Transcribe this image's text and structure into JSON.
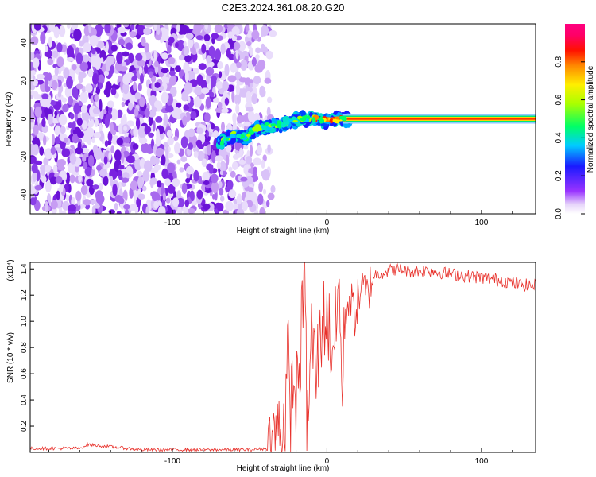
{
  "figure": {
    "title": "C2E3.2024.361.08.20.G20"
  },
  "chart_data": [
    {
      "type": "heatmap",
      "title": "C2E3.2024.361.08.20.G20",
      "xlabel": "Height of straight line (km)",
      "ylabel": "Frequency (Hz)",
      "xlim": [
        -192,
        135
      ],
      "ylim": [
        -50,
        50
      ],
      "xticks": [
        -100,
        0,
        100
      ],
      "yticks": [
        -40,
        -20,
        0,
        20,
        40
      ],
      "colorbar": {
        "label": "Normalized spectral amplitude",
        "range": [
          0,
          1
        ],
        "ticks": [
          "0.0",
          "0.2",
          "0.4",
          "0.6",
          "0.8"
        ],
        "tick_values": [
          0.0,
          0.2,
          0.4,
          0.6,
          0.8
        ]
      },
      "noise_region_x": [
        -192,
        -46
      ],
      "ridge": {
        "x": [
          -68,
          -60,
          -52,
          -45,
          -38,
          -30,
          -22,
          -15,
          -8,
          0,
          8,
          15,
          30,
          60,
          90,
          120,
          135
        ],
        "freq": [
          -12,
          -8,
          -10,
          -5,
          -4,
          -3,
          -1,
          0,
          0,
          -1,
          0,
          0,
          0,
          0,
          0,
          0,
          0
        ],
        "amplitude": [
          0.45,
          0.5,
          0.55,
          0.6,
          0.65,
          0.7,
          0.75,
          0.8,
          0.85,
          0.9,
          0.92,
          0.95,
          0.97,
          0.98,
          0.98,
          0.97,
          0.97
        ]
      }
    },
    {
      "type": "line",
      "xlabel": "Height of straight line (km)",
      "ylabel": "SNR (10 * v/v)",
      "y_multiplier": "(x10⁴)",
      "xlim": [
        -192,
        135
      ],
      "ylim": [
        0,
        1.45
      ],
      "xticks": [
        -100,
        0,
        100
      ],
      "yticks": [
        0.2,
        0.4,
        0.6,
        0.8,
        1.0,
        1.2,
        1.4
      ],
      "series": [
        {
          "color": "#e8312b",
          "x": [
            -192,
            -160,
            -155,
            -120,
            -80,
            -50,
            -35,
            -33,
            -30,
            -27,
            -25,
            -24,
            -22,
            -20,
            -18,
            -14,
            -13,
            -10,
            -7,
            -3,
            0,
            3,
            6,
            8,
            10,
            11,
            14,
            18,
            22,
            26,
            30,
            38,
            45,
            55,
            65,
            80,
            95,
            110,
            125,
            135
          ],
          "y": [
            0.03,
            0.03,
            0.06,
            0.02,
            0.02,
            0.02,
            0.03,
            0.25,
            0.1,
            0.3,
            0.75,
            0.2,
            0.55,
            0.4,
            0.6,
            1.42,
            0.1,
            0.9,
            0.6,
            1.0,
            1.05,
            0.8,
            0.95,
            1.3,
            0.32,
            0.95,
            1.2,
            1.05,
            1.25,
            1.2,
            1.35,
            1.38,
            1.4,
            1.38,
            1.39,
            1.36,
            1.34,
            1.32,
            1.28,
            1.27
          ]
        }
      ]
    }
  ]
}
